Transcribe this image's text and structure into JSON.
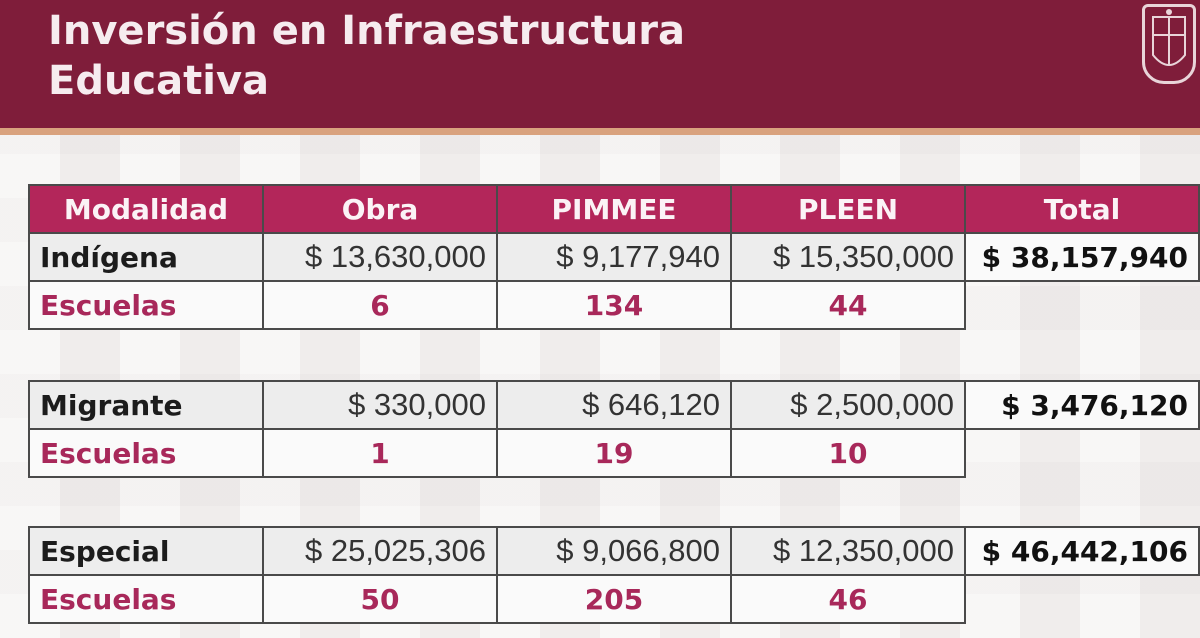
{
  "header": {
    "title_line1": "Inversión en Infraestructura",
    "title_line2": "Educativa"
  },
  "columns": [
    "Modalidad",
    "Obra",
    "PIMMEE",
    "PLEEN",
    "Total"
  ],
  "rows": [
    {
      "modalidad": "Indígena",
      "obra": "$ 13,630,000",
      "pimmee": "$ 9,177,940",
      "pleen": "$ 15,350,000",
      "total": "$ 38,157,940",
      "escuelas_label": "Escuelas",
      "escuelas_obra": "6",
      "escuelas_pimmee": "134",
      "escuelas_pleen": "44"
    },
    {
      "modalidad": "Migrante",
      "obra": "$ 330,000",
      "pimmee": "$ 646,120",
      "pleen": "$ 2,500,000",
      "total": "$ 3,476,120",
      "escuelas_label": "Escuelas",
      "escuelas_obra": "1",
      "escuelas_pimmee": "19",
      "escuelas_pleen": "10"
    },
    {
      "modalidad": "Especial",
      "obra": "$ 25,025,306",
      "pimmee": "$ 9,066,800",
      "pleen": "$ 12,350,000",
      "total": "$ 46,442,106",
      "escuelas_label": "Escuelas",
      "escuelas_obra": "50",
      "escuelas_pimmee": "205",
      "escuelas_pleen": "46"
    }
  ],
  "colors": {
    "header_bg": "#7f1d3a",
    "table_header_bg": "#b3265a",
    "escuelas_text": "#a8285a",
    "stripe": "#d9a27e"
  },
  "icons": {
    "seal": "state-seal-icon"
  }
}
